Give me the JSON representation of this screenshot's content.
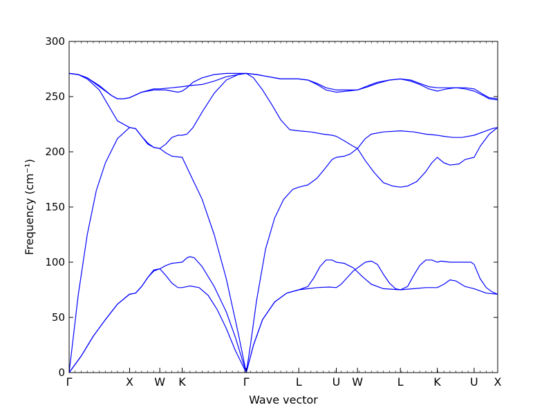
{
  "chart_data": {
    "type": "line",
    "xlabel": "Wave vector",
    "ylabel": "Frequency (cm⁻¹)",
    "ylim": [
      0,
      300
    ],
    "yticks": [
      0,
      50,
      100,
      150,
      200,
      250,
      300
    ],
    "xlim": [
      0,
      7.09
    ],
    "xticks": [
      {
        "label": "Γ",
        "x": 0
      },
      {
        "label": "X",
        "x": 1.0
      },
      {
        "label": "W",
        "x": 1.5
      },
      {
        "label": "K",
        "x": 1.87
      },
      {
        "label": "Γ",
        "x": 2.93
      },
      {
        "label": "L",
        "x": 3.8
      },
      {
        "label": "U",
        "x": 4.42
      },
      {
        "label": "W",
        "x": 4.77
      },
      {
        "label": "L",
        "x": 5.48
      },
      {
        "label": "K",
        "x": 6.09
      },
      {
        "label": "U",
        "x": 6.7
      },
      {
        "label": "X",
        "x": 7.09
      }
    ],
    "grid": false,
    "legend": "none",
    "series": [
      {
        "points": [
          [
            0,
            0
          ],
          [
            0.2,
            15
          ],
          [
            0.4,
            33
          ],
          [
            0.6,
            48
          ],
          [
            0.8,
            62
          ],
          [
            1.0,
            71
          ],
          [
            1.1,
            72
          ],
          [
            1.2,
            78
          ],
          [
            1.3,
            86
          ],
          [
            1.4,
            93
          ],
          [
            1.5,
            94
          ],
          [
            1.6,
            88
          ],
          [
            1.7,
            81
          ],
          [
            1.8,
            77
          ],
          [
            1.87,
            77
          ],
          [
            2.0,
            78.5
          ],
          [
            2.15,
            77
          ],
          [
            2.3,
            70
          ],
          [
            2.45,
            57
          ],
          [
            2.6,
            40
          ],
          [
            2.75,
            20
          ],
          [
            2.93,
            0
          ]
        ]
      },
      {
        "points": [
          [
            0,
            0
          ],
          [
            0.2,
            15
          ],
          [
            0.4,
            33
          ],
          [
            0.6,
            48
          ],
          [
            0.8,
            62
          ],
          [
            1.0,
            71
          ],
          [
            1.1,
            72
          ],
          [
            1.2,
            78
          ],
          [
            1.3,
            86
          ],
          [
            1.4,
            92
          ],
          [
            1.5,
            94
          ],
          [
            1.6,
            97
          ],
          [
            1.7,
            99
          ],
          [
            1.87,
            100
          ],
          [
            1.95,
            104
          ],
          [
            2.0,
            105
          ],
          [
            2.07,
            104
          ],
          [
            2.2,
            96
          ],
          [
            2.4,
            78
          ],
          [
            2.6,
            55
          ],
          [
            2.75,
            32
          ],
          [
            2.93,
            0
          ]
        ]
      },
      {
        "points": [
          [
            0,
            0
          ],
          [
            0.15,
            70
          ],
          [
            0.3,
            125
          ],
          [
            0.45,
            165
          ],
          [
            0.6,
            190
          ],
          [
            0.8,
            212
          ],
          [
            1.0,
            222
          ],
          [
            1.1,
            221
          ],
          [
            1.2,
            214
          ],
          [
            1.3,
            208
          ],
          [
            1.4,
            204
          ],
          [
            1.5,
            203
          ],
          [
            1.6,
            199
          ],
          [
            1.7,
            196
          ],
          [
            1.87,
            195
          ],
          [
            2.0,
            180
          ],
          [
            2.2,
            157
          ],
          [
            2.4,
            125
          ],
          [
            2.6,
            85
          ],
          [
            2.8,
            35
          ],
          [
            2.93,
            0
          ]
        ]
      },
      {
        "points": [
          [
            0,
            271
          ],
          [
            0.15,
            270
          ],
          [
            0.3,
            266
          ],
          [
            0.5,
            256
          ],
          [
            0.65,
            242
          ],
          [
            0.8,
            228
          ],
          [
            1.0,
            222
          ],
          [
            1.1,
            221
          ],
          [
            1.2,
            214
          ],
          [
            1.3,
            207
          ],
          [
            1.4,
            204
          ],
          [
            1.5,
            203
          ],
          [
            1.6,
            207
          ],
          [
            1.7,
            213
          ],
          [
            1.8,
            215
          ],
          [
            1.87,
            215
          ],
          [
            1.95,
            216
          ],
          [
            2.05,
            222
          ],
          [
            2.2,
            236
          ],
          [
            2.4,
            253
          ],
          [
            2.6,
            265
          ],
          [
            2.8,
            270
          ],
          [
            2.93,
            271
          ]
        ]
      },
      {
        "points": [
          [
            0,
            271
          ],
          [
            0.15,
            270
          ],
          [
            0.3,
            267
          ],
          [
            0.5,
            260
          ],
          [
            0.7,
            251
          ],
          [
            0.8,
            248
          ],
          [
            0.9,
            248
          ],
          [
            1.0,
            249
          ],
          [
            1.2,
            254
          ],
          [
            1.4,
            256
          ],
          [
            1.5,
            256
          ],
          [
            1.6,
            256
          ],
          [
            1.7,
            255
          ],
          [
            1.8,
            254
          ],
          [
            1.87,
            255
          ],
          [
            1.95,
            258
          ],
          [
            2.05,
            263
          ],
          [
            2.2,
            267
          ],
          [
            2.4,
            270
          ],
          [
            2.6,
            271
          ],
          [
            2.93,
            271
          ]
        ]
      },
      {
        "points": [
          [
            0,
            271
          ],
          [
            0.15,
            270
          ],
          [
            0.3,
            267
          ],
          [
            0.5,
            259
          ],
          [
            0.7,
            251
          ],
          [
            0.8,
            248
          ],
          [
            0.9,
            248
          ],
          [
            1.0,
            249
          ],
          [
            1.2,
            254
          ],
          [
            1.4,
            257
          ],
          [
            1.5,
            257
          ],
          [
            1.7,
            258
          ],
          [
            1.87,
            259
          ],
          [
            2.0,
            260
          ],
          [
            2.2,
            261
          ],
          [
            2.4,
            264
          ],
          [
            2.6,
            268
          ],
          [
            2.8,
            270
          ],
          [
            2.93,
            271
          ]
        ]
      },
      {
        "points": [
          [
            2.93,
            0
          ],
          [
            3.05,
            25
          ],
          [
            3.2,
            48
          ],
          [
            3.4,
            64
          ],
          [
            3.6,
            72
          ],
          [
            3.8,
            75
          ],
          [
            3.95,
            76
          ],
          [
            4.1,
            77
          ],
          [
            4.3,
            77.5
          ],
          [
            4.42,
            77
          ],
          [
            4.5,
            80
          ],
          [
            4.6,
            86
          ],
          [
            4.7,
            92
          ],
          [
            4.8,
            96
          ],
          [
            4.9,
            100
          ],
          [
            5.0,
            101
          ],
          [
            5.1,
            98
          ],
          [
            5.2,
            89
          ],
          [
            5.3,
            81
          ],
          [
            5.4,
            76
          ],
          [
            5.48,
            75
          ],
          [
            5.6,
            78
          ],
          [
            5.7,
            88
          ],
          [
            5.8,
            97
          ],
          [
            5.9,
            102
          ],
          [
            6.0,
            102
          ],
          [
            6.09,
            100
          ],
          [
            6.15,
            101
          ],
          [
            6.3,
            100
          ],
          [
            6.5,
            100
          ],
          [
            6.65,
            100
          ],
          [
            6.7,
            98
          ],
          [
            6.8,
            85
          ],
          [
            6.9,
            77
          ],
          [
            7.0,
            73
          ],
          [
            7.09,
            71
          ]
        ]
      },
      {
        "points": [
          [
            2.93,
            0
          ],
          [
            3.05,
            25
          ],
          [
            3.2,
            48
          ],
          [
            3.4,
            64
          ],
          [
            3.6,
            72
          ],
          [
            3.8,
            75
          ],
          [
            3.95,
            78
          ],
          [
            4.05,
            86
          ],
          [
            4.15,
            96
          ],
          [
            4.25,
            102
          ],
          [
            4.35,
            102
          ],
          [
            4.42,
            100
          ],
          [
            4.55,
            99
          ],
          [
            4.7,
            95
          ],
          [
            4.85,
            87
          ],
          [
            5.0,
            80
          ],
          [
            5.2,
            76
          ],
          [
            5.48,
            75
          ],
          [
            5.7,
            76
          ],
          [
            5.9,
            77
          ],
          [
            6.09,
            77
          ],
          [
            6.2,
            80
          ],
          [
            6.3,
            84
          ],
          [
            6.4,
            83
          ],
          [
            6.55,
            78
          ],
          [
            6.7,
            76
          ],
          [
            6.9,
            72
          ],
          [
            7.09,
            71
          ]
        ]
      },
      {
        "points": [
          [
            2.93,
            0
          ],
          [
            3.0,
            25
          ],
          [
            3.1,
            65
          ],
          [
            3.25,
            112
          ],
          [
            3.4,
            140
          ],
          [
            3.55,
            157
          ],
          [
            3.7,
            166
          ],
          [
            3.8,
            168
          ],
          [
            3.95,
            170
          ],
          [
            4.1,
            176
          ],
          [
            4.25,
            186
          ],
          [
            4.35,
            193
          ],
          [
            4.42,
            195
          ],
          [
            4.55,
            196
          ],
          [
            4.65,
            198
          ],
          [
            4.77,
            203
          ],
          [
            4.9,
            212
          ],
          [
            5.0,
            216
          ],
          [
            5.2,
            218
          ],
          [
            5.48,
            219
          ],
          [
            5.7,
            218
          ],
          [
            5.9,
            216
          ],
          [
            6.09,
            215
          ],
          [
            6.2,
            214
          ],
          [
            6.35,
            213
          ],
          [
            6.5,
            213
          ],
          [
            6.7,
            215
          ],
          [
            6.85,
            218
          ],
          [
            7.0,
            221
          ],
          [
            7.09,
            222
          ]
        ]
      },
      {
        "points": [
          [
            2.93,
            271
          ],
          [
            3.05,
            267
          ],
          [
            3.2,
            256
          ],
          [
            3.35,
            243
          ],
          [
            3.5,
            229
          ],
          [
            3.65,
            220
          ],
          [
            3.8,
            219
          ],
          [
            4.0,
            218
          ],
          [
            4.2,
            216
          ],
          [
            4.35,
            215
          ],
          [
            4.42,
            214
          ],
          [
            4.55,
            210
          ],
          [
            4.7,
            205
          ],
          [
            4.77,
            203
          ],
          [
            4.9,
            192
          ],
          [
            5.05,
            181
          ],
          [
            5.2,
            172
          ],
          [
            5.35,
            169
          ],
          [
            5.48,
            168
          ],
          [
            5.6,
            169
          ],
          [
            5.75,
            173
          ],
          [
            5.9,
            182
          ],
          [
            6.0,
            190
          ],
          [
            6.09,
            195
          ],
          [
            6.2,
            190
          ],
          [
            6.3,
            188
          ],
          [
            6.45,
            189
          ],
          [
            6.55,
            193
          ],
          [
            6.7,
            195
          ],
          [
            6.8,
            205
          ],
          [
            6.95,
            216
          ],
          [
            7.09,
            222
          ]
        ]
      },
      {
        "points": [
          [
            2.93,
            271
          ],
          [
            3.1,
            270
          ],
          [
            3.3,
            268
          ],
          [
            3.5,
            266
          ],
          [
            3.8,
            266
          ],
          [
            3.95,
            265
          ],
          [
            4.1,
            262
          ],
          [
            4.25,
            258
          ],
          [
            4.42,
            256
          ],
          [
            4.6,
            256
          ],
          [
            4.77,
            256
          ],
          [
            4.95,
            259
          ],
          [
            5.1,
            262
          ],
          [
            5.3,
            265
          ],
          [
            5.48,
            266
          ],
          [
            5.65,
            265
          ],
          [
            5.8,
            262
          ],
          [
            5.95,
            259
          ],
          [
            6.09,
            258
          ],
          [
            6.25,
            258
          ],
          [
            6.4,
            258
          ],
          [
            6.55,
            258
          ],
          [
            6.7,
            257
          ],
          [
            6.85,
            252
          ],
          [
            6.95,
            249
          ],
          [
            7.09,
            248
          ]
        ]
      },
      {
        "points": [
          [
            2.93,
            271
          ],
          [
            3.1,
            270
          ],
          [
            3.3,
            268
          ],
          [
            3.5,
            266
          ],
          [
            3.8,
            266
          ],
          [
            3.95,
            265
          ],
          [
            4.1,
            261
          ],
          [
            4.25,
            256
          ],
          [
            4.42,
            254
          ],
          [
            4.6,
            255
          ],
          [
            4.77,
            256
          ],
          [
            4.95,
            260
          ],
          [
            5.1,
            263
          ],
          [
            5.3,
            265
          ],
          [
            5.48,
            266
          ],
          [
            5.65,
            264
          ],
          [
            5.8,
            261
          ],
          [
            5.95,
            257
          ],
          [
            6.09,
            255
          ],
          [
            6.25,
            257
          ],
          [
            6.4,
            258
          ],
          [
            6.55,
            257
          ],
          [
            6.7,
            255
          ],
          [
            6.85,
            251
          ],
          [
            6.95,
            248
          ],
          [
            7.09,
            247
          ]
        ]
      }
    ]
  }
}
